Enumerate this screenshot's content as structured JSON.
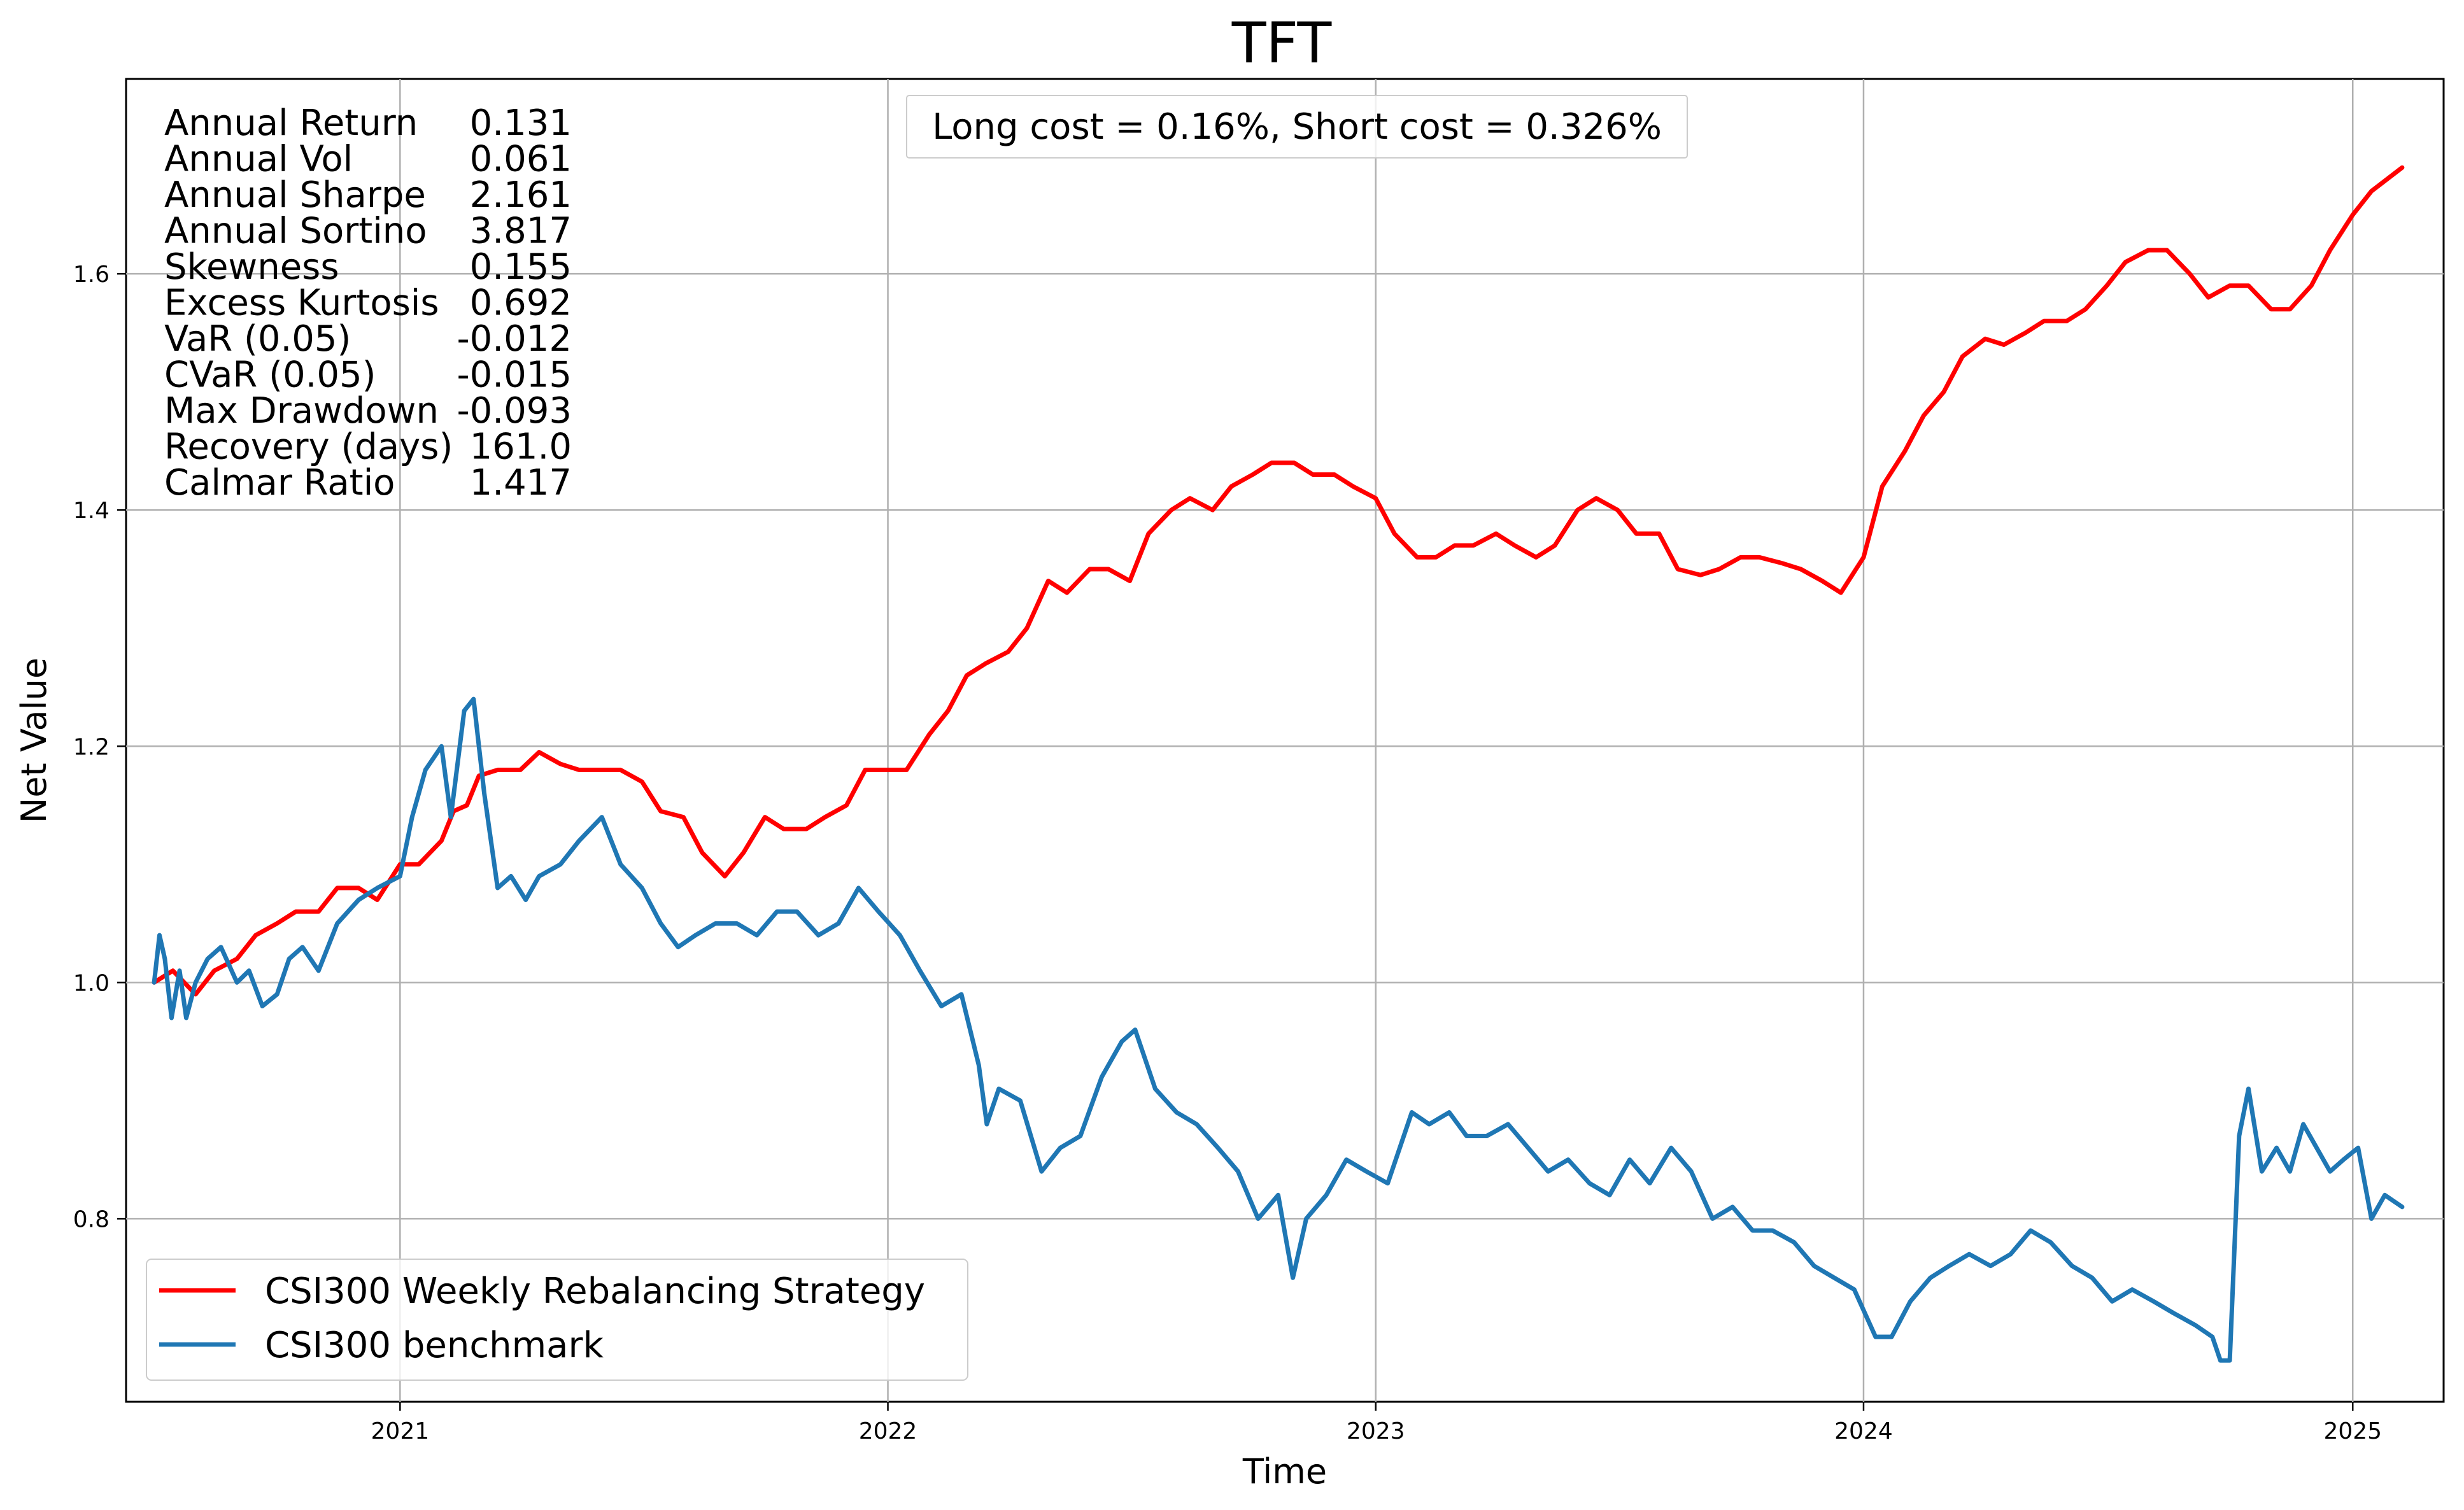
{
  "chart_data": {
    "type": "line",
    "title": "TFT",
    "xlabel": "Time",
    "ylabel": "Net Value",
    "x_ticks": [
      "2021",
      "2022",
      "2023",
      "2024",
      "2025"
    ],
    "y_ticks": [
      "0.8",
      "1.0",
      "1.2",
      "1.4",
      "1.6"
    ],
    "ylim": [
      0.645,
      1.765
    ],
    "xlim": [
      "2020-06-10",
      "2025-03-10"
    ],
    "grid": true,
    "legend_position": "lower-left",
    "annotation": "Long cost = 0.16%, Short cost = 0.326%",
    "stats": [
      {
        "label": "Annual Return",
        "value": "0.131"
      },
      {
        "label": "Annual Vol",
        "value": "0.061"
      },
      {
        "label": "Annual Sharpe",
        "value": "2.161"
      },
      {
        "label": "Annual Sortino",
        "value": "3.817"
      },
      {
        "label": "Skewness",
        "value": "0.155"
      },
      {
        "label": "Excess Kurtosis",
        "value": "0.692"
      },
      {
        "label": "VaR (0.05)",
        "value": "-0.012"
      },
      {
        "label": "CVaR (0.05)",
        "value": "-0.015"
      },
      {
        "label": "Max Drawdown",
        "value": "-0.093"
      },
      {
        "label": "Recovery (days)",
        "value": "161.0"
      },
      {
        "label": "Calmar Ratio",
        "value": "1.417"
      }
    ],
    "series": [
      {
        "name": "CSI300 Weekly Rebalancing Strategy",
        "color": "#ff0000",
        "x": [
          "2020-07-01",
          "2020-07-15",
          "2020-08-01",
          "2020-08-15",
          "2020-09-01",
          "2020-09-15",
          "2020-10-01",
          "2020-10-15",
          "2020-11-01",
          "2020-11-15",
          "2020-12-01",
          "2020-12-15",
          "2021-01-01",
          "2021-01-15",
          "2021-02-01",
          "2021-02-10",
          "2021-02-20",
          "2021-03-01",
          "2021-03-15",
          "2021-04-01",
          "2021-04-15",
          "2021-05-01",
          "2021-05-15",
          "2021-06-01",
          "2021-06-15",
          "2021-07-01",
          "2021-07-15",
          "2021-08-01",
          "2021-08-15",
          "2021-09-01",
          "2021-09-15",
          "2021-10-01",
          "2021-10-15",
          "2021-11-01",
          "2021-11-15",
          "2021-12-01",
          "2021-12-15",
          "2022-01-01",
          "2022-01-15",
          "2022-02-01",
          "2022-02-15",
          "2022-03-01",
          "2022-03-15",
          "2022-04-01",
          "2022-04-15",
          "2022-05-01",
          "2022-05-15",
          "2022-06-01",
          "2022-06-15",
          "2022-07-01",
          "2022-07-15",
          "2022-08-01",
          "2022-08-15",
          "2022-09-01",
          "2022-09-15",
          "2022-10-01",
          "2022-10-15",
          "2022-11-01",
          "2022-11-15",
          "2022-12-01",
          "2022-12-15",
          "2023-01-01",
          "2023-01-15",
          "2023-02-01",
          "2023-02-15",
          "2023-03-01",
          "2023-03-15",
          "2023-04-01",
          "2023-04-15",
          "2023-05-01",
          "2023-05-15",
          "2023-06-01",
          "2023-06-15",
          "2023-07-01",
          "2023-07-15",
          "2023-08-01",
          "2023-08-15",
          "2023-09-01",
          "2023-09-15",
          "2023-10-01",
          "2023-10-15",
          "2023-11-01",
          "2023-11-15",
          "2023-12-01",
          "2023-12-15",
          "2024-01-01",
          "2024-01-15",
          "2024-02-01",
          "2024-02-15",
          "2024-03-01",
          "2024-03-15",
          "2024-04-01",
          "2024-04-15",
          "2024-05-01",
          "2024-05-15",
          "2024-06-01",
          "2024-06-15",
          "2024-07-01",
          "2024-07-15",
          "2024-08-01",
          "2024-08-15",
          "2024-09-01",
          "2024-09-15",
          "2024-10-01",
          "2024-10-15",
          "2024-11-01",
          "2024-11-15",
          "2024-12-01",
          "2024-12-15",
          "2025-01-01",
          "2025-01-15",
          "2025-02-07"
        ],
        "y": [
          1.0,
          1.01,
          0.99,
          1.01,
          1.02,
          1.04,
          1.05,
          1.06,
          1.06,
          1.08,
          1.08,
          1.07,
          1.1,
          1.1,
          1.12,
          1.145,
          1.15,
          1.175,
          1.18,
          1.18,
          1.195,
          1.185,
          1.18,
          1.18,
          1.18,
          1.17,
          1.145,
          1.14,
          1.11,
          1.09,
          1.11,
          1.14,
          1.13,
          1.13,
          1.14,
          1.15,
          1.18,
          1.18,
          1.18,
          1.21,
          1.23,
          1.26,
          1.27,
          1.28,
          1.3,
          1.34,
          1.33,
          1.35,
          1.35,
          1.34,
          1.38,
          1.4,
          1.41,
          1.4,
          1.42,
          1.43,
          1.44,
          1.44,
          1.43,
          1.43,
          1.42,
          1.41,
          1.38,
          1.36,
          1.36,
          1.37,
          1.37,
          1.38,
          1.37,
          1.36,
          1.37,
          1.4,
          1.41,
          1.4,
          1.38,
          1.38,
          1.35,
          1.345,
          1.35,
          1.36,
          1.36,
          1.355,
          1.35,
          1.34,
          1.33,
          1.36,
          1.42,
          1.45,
          1.48,
          1.5,
          1.53,
          1.545,
          1.54,
          1.55,
          1.56,
          1.56,
          1.57,
          1.59,
          1.61,
          1.62,
          1.62,
          1.6,
          1.58,
          1.59,
          1.59,
          1.57,
          1.57,
          1.59,
          1.62,
          1.65,
          1.67,
          1.69
        ]
      },
      {
        "name": "CSI300 benchmark",
        "color": "#1f77b4",
        "x": [
          "2020-07-01",
          "2020-07-05",
          "2020-07-09",
          "2020-07-14",
          "2020-07-20",
          "2020-07-25",
          "2020-08-01",
          "2020-08-10",
          "2020-08-20",
          "2020-09-01",
          "2020-09-10",
          "2020-09-20",
          "2020-10-01",
          "2020-10-10",
          "2020-10-20",
          "2020-11-01",
          "2020-11-15",
          "2020-12-01",
          "2020-12-15",
          "2021-01-01",
          "2021-01-10",
          "2021-01-20",
          "2021-02-01",
          "2021-02-08",
          "2021-02-18",
          "2021-02-25",
          "2021-03-05",
          "2021-03-15",
          "2021-03-25",
          "2021-04-05",
          "2021-04-15",
          "2021-05-01",
          "2021-05-15",
          "2021-06-01",
          "2021-06-15",
          "2021-07-01",
          "2021-07-15",
          "2021-07-28",
          "2021-08-10",
          "2021-08-25",
          "2021-09-10",
          "2021-09-25",
          "2021-10-10",
          "2021-10-25",
          "2021-11-10",
          "2021-11-25",
          "2021-12-10",
          "2021-12-25",
          "2022-01-10",
          "2022-01-25",
          "2022-02-10",
          "2022-02-25",
          "2022-03-10",
          "2022-03-16",
          "2022-03-25",
          "2022-04-10",
          "2022-04-26",
          "2022-05-10",
          "2022-05-25",
          "2022-06-10",
          "2022-06-25",
          "2022-07-05",
          "2022-07-20",
          "2022-08-05",
          "2022-08-20",
          "2022-09-05",
          "2022-09-20",
          "2022-10-05",
          "2022-10-20",
          "2022-10-31",
          "2022-11-10",
          "2022-11-25",
          "2022-12-10",
          "2022-12-25",
          "2023-01-10",
          "2023-01-28",
          "2023-02-10",
          "2023-02-25",
          "2023-03-10",
          "2023-03-25",
          "2023-04-10",
          "2023-04-25",
          "2023-05-10",
          "2023-05-25",
          "2023-06-10",
          "2023-06-25",
          "2023-07-10",
          "2023-07-25",
          "2023-08-10",
          "2023-08-25",
          "2023-09-10",
          "2023-09-25",
          "2023-10-10",
          "2023-10-25",
          "2023-11-10",
          "2023-11-25",
          "2023-12-10",
          "2023-12-25",
          "2024-01-10",
          "2024-01-22",
          "2024-02-05",
          "2024-02-20",
          "2024-03-05",
          "2024-03-20",
          "2024-04-05",
          "2024-04-20",
          "2024-05-05",
          "2024-05-20",
          "2024-06-05",
          "2024-06-20",
          "2024-07-05",
          "2024-07-20",
          "2024-08-05",
          "2024-08-20",
          "2024-09-05",
          "2024-09-18",
          "2024-09-24",
          "2024-10-01",
          "2024-10-08",
          "2024-10-15",
          "2024-10-25",
          "2024-11-05",
          "2024-11-15",
          "2024-11-25",
          "2024-12-05",
          "2024-12-15",
          "2024-12-25",
          "2025-01-05",
          "2025-01-15",
          "2025-01-25",
          "2025-02-07"
        ],
        "y": [
          1.0,
          1.04,
          1.02,
          0.97,
          1.01,
          0.97,
          1.0,
          1.02,
          1.03,
          1.0,
          1.01,
          0.98,
          0.99,
          1.02,
          1.03,
          1.01,
          1.05,
          1.07,
          1.08,
          1.09,
          1.14,
          1.18,
          1.2,
          1.14,
          1.23,
          1.24,
          1.16,
          1.08,
          1.09,
          1.07,
          1.09,
          1.1,
          1.12,
          1.14,
          1.1,
          1.08,
          1.05,
          1.03,
          1.04,
          1.05,
          1.05,
          1.04,
          1.06,
          1.06,
          1.04,
          1.05,
          1.08,
          1.06,
          1.04,
          1.01,
          0.98,
          0.99,
          0.93,
          0.88,
          0.91,
          0.9,
          0.84,
          0.86,
          0.87,
          0.92,
          0.95,
          0.96,
          0.91,
          0.89,
          0.88,
          0.86,
          0.84,
          0.8,
          0.82,
          0.75,
          0.8,
          0.82,
          0.85,
          0.84,
          0.83,
          0.89,
          0.88,
          0.89,
          0.87,
          0.87,
          0.88,
          0.86,
          0.84,
          0.85,
          0.83,
          0.82,
          0.85,
          0.83,
          0.86,
          0.84,
          0.8,
          0.81,
          0.79,
          0.79,
          0.78,
          0.76,
          0.75,
          0.74,
          0.7,
          0.7,
          0.73,
          0.75,
          0.76,
          0.77,
          0.76,
          0.77,
          0.79,
          0.78,
          0.76,
          0.75,
          0.73,
          0.74,
          0.73,
          0.72,
          0.71,
          0.7,
          0.68,
          0.68,
          0.87,
          0.91,
          0.84,
          0.86,
          0.84,
          0.88,
          0.86,
          0.84,
          0.85,
          0.86,
          0.8,
          0.82,
          0.81
        ]
      }
    ]
  }
}
